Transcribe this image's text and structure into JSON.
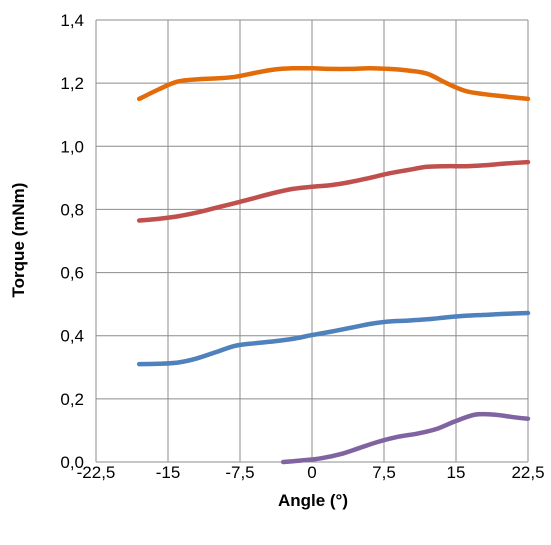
{
  "chart_data": {
    "type": "line",
    "xlabel": "Angle (°)",
    "ylabel": "Torque (mNm)",
    "xlim": [
      -22.5,
      22.5
    ],
    "ylim": [
      0,
      1.4
    ],
    "x_ticks": [
      -22.5,
      -15,
      -7.5,
      0,
      7.5,
      15,
      22.5
    ],
    "x_tick_labels": [
      "-22,5",
      "-15",
      "-7,5",
      "0",
      "7,5",
      "15",
      "22,5"
    ],
    "y_ticks": [
      0,
      0.2,
      0.4,
      0.6,
      0.8,
      1.0,
      1.2,
      1.4
    ],
    "y_tick_labels": [
      "0,0",
      "0,2",
      "0,4",
      "0,6",
      "0,8",
      "1,0",
      "1,2",
      "1,4"
    ],
    "grid": true,
    "legend": "none",
    "series": [
      {
        "color": "#E36C0A",
        "x": [
          -18,
          -16,
          -14,
          -12,
          -10,
          -8,
          -6,
          -4,
          -2,
          0,
          2,
          4,
          6,
          8,
          10,
          12,
          14,
          16,
          18,
          20,
          22.5
        ],
        "y": [
          1.15,
          1.18,
          1.205,
          1.212,
          1.215,
          1.22,
          1.232,
          1.243,
          1.247,
          1.247,
          1.245,
          1.245,
          1.247,
          1.245,
          1.24,
          1.23,
          1.2,
          1.175,
          1.165,
          1.158,
          1.15
        ]
      },
      {
        "color": "#C0504D",
        "x": [
          -18,
          -16,
          -14,
          -12,
          -10,
          -8,
          -6,
          -4,
          -2,
          0,
          2,
          4,
          6,
          8,
          10,
          12,
          14,
          16,
          18,
          20,
          22.5
        ],
        "y": [
          0.765,
          0.77,
          0.778,
          0.79,
          0.805,
          0.82,
          0.836,
          0.852,
          0.865,
          0.872,
          0.877,
          0.887,
          0.9,
          0.914,
          0.925,
          0.935,
          0.937,
          0.937,
          0.94,
          0.945,
          0.95
        ]
      },
      {
        "color": "#4F81BD",
        "x": [
          -18,
          -16,
          -14,
          -12,
          -10,
          -8,
          -6,
          -4,
          -2,
          0,
          2,
          4,
          6,
          8,
          10,
          12,
          14,
          16,
          18,
          20,
          22.5
        ],
        "y": [
          0.31,
          0.311,
          0.315,
          0.328,
          0.348,
          0.368,
          0.376,
          0.382,
          0.39,
          0.402,
          0.413,
          0.425,
          0.437,
          0.445,
          0.448,
          0.452,
          0.458,
          0.463,
          0.466,
          0.469,
          0.472
        ]
      },
      {
        "color": "#8064A2",
        "x": [
          -3,
          -1,
          1,
          3,
          5,
          7,
          9,
          11,
          13,
          15,
          17,
          19,
          21,
          22.5
        ],
        "y": [
          0.0,
          0.005,
          0.012,
          0.025,
          0.045,
          0.065,
          0.08,
          0.09,
          0.105,
          0.13,
          0.15,
          0.15,
          0.142,
          0.137
        ]
      }
    ]
  }
}
